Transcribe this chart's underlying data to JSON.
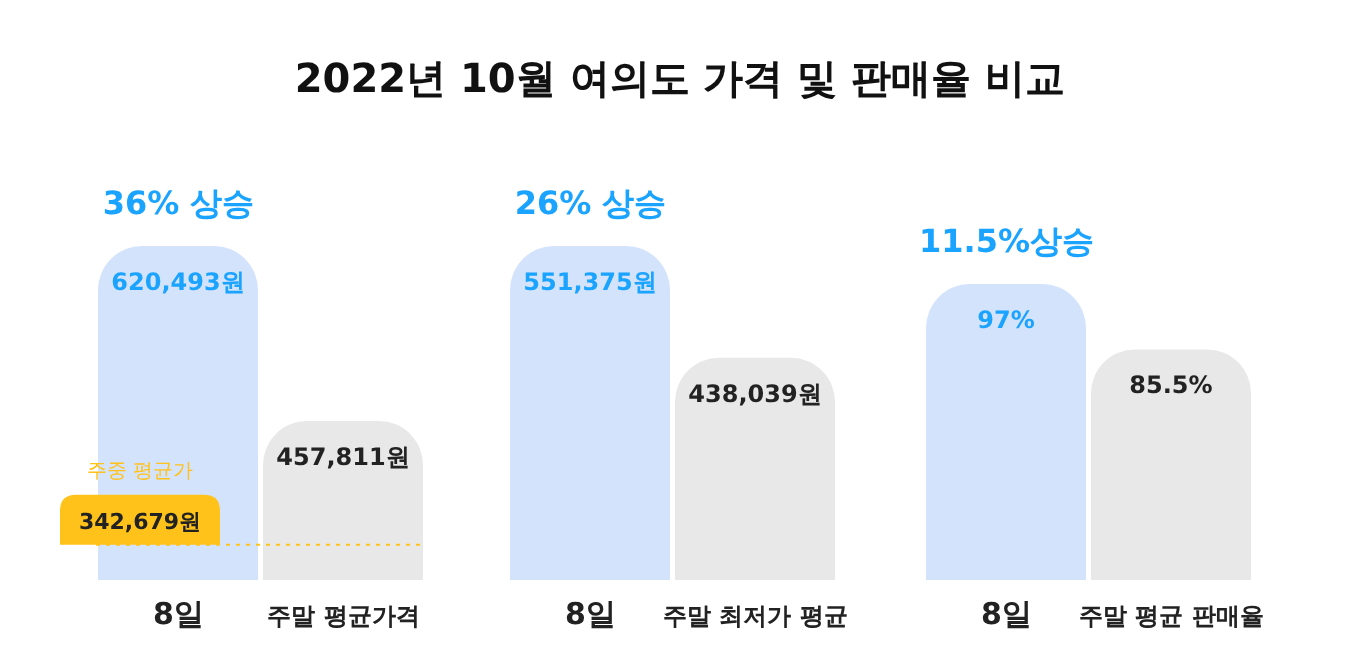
{
  "chart_data": [
    {
      "type": "bar",
      "title": "2022년 10월 여의도 가격 및 판매율 비교",
      "categories": [
        "8일",
        "주말 평균가격"
      ],
      "values": [
        620493,
        457811
      ],
      "colors": [
        "#d4e3fc",
        "#e8e8e8"
      ],
      "value_labels": [
        "620,493원",
        "457,811원"
      ],
      "ylim": [
        310000,
        620493
      ],
      "grid": false,
      "legend": false,
      "ref_lines": [
        {
          "axis": "y",
          "value": 342679,
          "label": "주중 평균가",
          "color": "#ffc21a",
          "line_style": "dotted"
        }
      ],
      "annotations": [
        {
          "text": "36% 상승",
          "x": "8일",
          "y": 620493
        },
        {
          "text": "342,679원",
          "y": 342679
        }
      ]
    },
    {
      "type": "bar",
      "categories": [
        "8일",
        "주말 최저가 평균"
      ],
      "values": [
        551375,
        438039
      ],
      "colors": [
        "#d4e3fc",
        "#e8e8e8"
      ],
      "value_labels": [
        "551,375원",
        "438,039원"
      ],
      "ylim": [
        213000,
        551375
      ],
      "grid": false,
      "legend": false,
      "annotations": [
        {
          "text": "26% 상승",
          "x": "8일",
          "y": 551375
        }
      ]
    },
    {
      "type": "bar",
      "categories": [
        "8일",
        "주말 평균 판매율"
      ],
      "values": [
        97,
        85.5
      ],
      "colors": [
        "#d4e3fc",
        "#e8e8e8"
      ],
      "value_labels": [
        "97%",
        "85.5%"
      ],
      "ylim": [
        45,
        97
      ],
      "grid": false,
      "legend": false,
      "annotations": [
        {
          "text": "11.5%상승",
          "x": "8일",
          "y": 97
        }
      ]
    }
  ]
}
